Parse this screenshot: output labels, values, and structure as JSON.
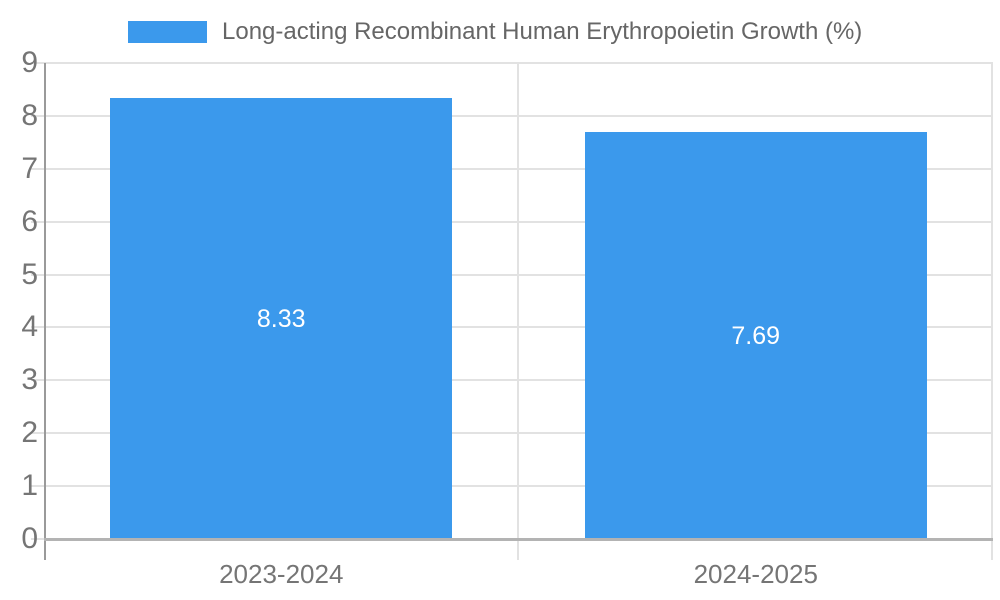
{
  "chart_data": {
    "type": "bar",
    "title": "Long-acting Recombinant Human Erythropoietin Growth (%)",
    "categories": [
      "2023-2024",
      "2024-2025"
    ],
    "values": [
      8.33,
      7.69
    ],
    "value_labels": [
      "8.33",
      "7.69"
    ],
    "xlabel": "",
    "ylabel": "",
    "ylim": [
      0,
      9
    ],
    "yticks": [
      0,
      1,
      2,
      3,
      4,
      5,
      6,
      7,
      8,
      9
    ],
    "grid": true,
    "legend_position": "top-left",
    "bar_width_frac": 0.72,
    "colors": {
      "bar": "#3b99ec",
      "value_label": "#ffffff",
      "tick_label": "#757575",
      "title": "#666666",
      "gridline": "#e2e2e2",
      "category_divider": "#e2e2e2",
      "y_axis_line": "#9a9a9a",
      "baseline": "#b3b3b3",
      "background": "#ffffff"
    }
  }
}
